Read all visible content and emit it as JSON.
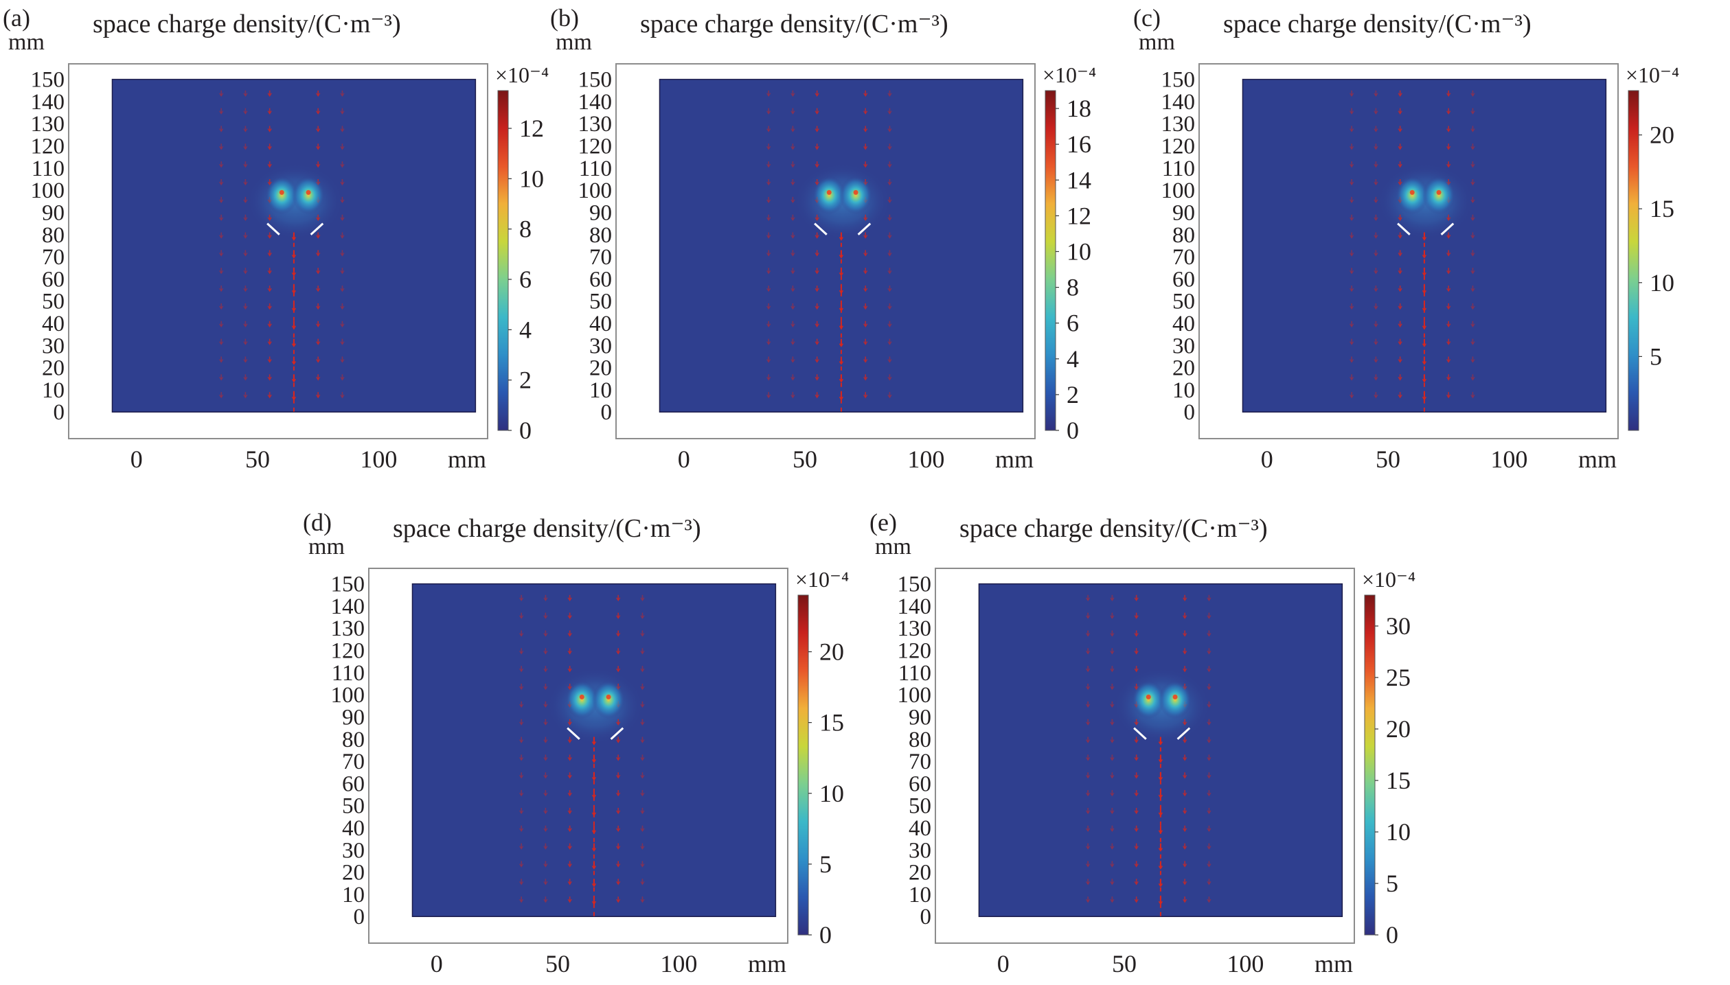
{
  "figure": {
    "panels": [
      {
        "letter": "(a)",
        "title": "space charge density/(C·m⁻³)",
        "y_unit": "mm",
        "x_unit": "mm",
        "multiplier": "×10⁻⁴"
      },
      {
        "letter": "(b)",
        "title": "space charge density/(C·m⁻³)",
        "y_unit": "mm",
        "x_unit": "mm",
        "multiplier": "×10⁻⁴"
      },
      {
        "letter": "(c)",
        "title": "space charge density/(C·m⁻³)",
        "y_unit": "mm",
        "x_unit": "mm",
        "multiplier": "×10⁻⁴"
      },
      {
        "letter": "(d)",
        "title": "space charge density/(C·m⁻³)",
        "y_unit": "mm",
        "x_unit": "mm",
        "multiplier": "×10⁻⁴"
      },
      {
        "letter": "(e)",
        "title": "space charge density/(C·m⁻³)",
        "y_unit": "mm",
        "x_unit": "mm",
        "multiplier": "×10⁻⁴"
      }
    ]
  },
  "colors": {
    "background_field": "#2f3f8f",
    "frame": "#8c8c8c",
    "arrow": "#d7261e",
    "electrode": "#ffffff",
    "colormap": [
      "#30307f",
      "#2a58b0",
      "#2f8fc8",
      "#3cb8c8",
      "#7ccf8f",
      "#c8d63c",
      "#f0b03a",
      "#e8582a",
      "#c8221e",
      "#7a1616"
    ]
  },
  "chart_data": [
    {
      "type": "heatmap",
      "title": "space charge density/(C·m⁻³)",
      "xlabel": "mm",
      "ylabel": "mm",
      "x_ticks": [
        0,
        50,
        100
      ],
      "y_ticks": [
        0,
        10,
        20,
        30,
        40,
        50,
        60,
        70,
        80,
        90,
        100,
        110,
        120,
        130,
        140,
        150
      ],
      "xlim": [
        -28,
        145
      ],
      "ylim": [
        -12,
        157
      ],
      "domain_x": [
        -10,
        140
      ],
      "domain_y": [
        0,
        150
      ],
      "colorbar": {
        "multiplier": "×10⁻⁴",
        "ticks": [
          0,
          2,
          4,
          6,
          8,
          10,
          12
        ],
        "range": [
          0,
          13.5
        ]
      },
      "hotspots": [
        {
          "x": 60,
          "y": 99
        },
        {
          "x": 71,
          "y": 99
        }
      ],
      "electrodes": [
        {
          "x1": 54,
          "y1": 85,
          "x2": 59,
          "y2": 80
        },
        {
          "x1": 72,
          "y1": 80,
          "x2": 77,
          "y2": 85
        }
      ]
    },
    {
      "type": "heatmap",
      "title": "space charge density/(C·m⁻³)",
      "xlabel": "mm",
      "ylabel": "mm",
      "x_ticks": [
        0,
        50,
        100
      ],
      "y_ticks": [
        0,
        10,
        20,
        30,
        40,
        50,
        60,
        70,
        80,
        90,
        100,
        110,
        120,
        130,
        140,
        150
      ],
      "xlim": [
        -28,
        145
      ],
      "ylim": [
        -12,
        157
      ],
      "domain_x": [
        -10,
        140
      ],
      "domain_y": [
        0,
        150
      ],
      "colorbar": {
        "multiplier": "×10⁻⁴",
        "ticks": [
          0,
          2,
          4,
          6,
          8,
          10,
          12,
          14,
          16,
          18
        ],
        "range": [
          0,
          19
        ]
      },
      "hotspots": [
        {
          "x": 60,
          "y": 99
        },
        {
          "x": 71,
          "y": 99
        }
      ],
      "electrodes": [
        {
          "x1": 54,
          "y1": 85,
          "x2": 59,
          "y2": 80
        },
        {
          "x1": 72,
          "y1": 80,
          "x2": 77,
          "y2": 85
        }
      ]
    },
    {
      "type": "heatmap",
      "title": "space charge density/(C·m⁻³)",
      "xlabel": "mm",
      "ylabel": "mm",
      "x_ticks": [
        0,
        50,
        100
      ],
      "y_ticks": [
        0,
        10,
        20,
        30,
        40,
        50,
        60,
        70,
        80,
        90,
        100,
        110,
        120,
        130,
        140,
        150
      ],
      "xlim": [
        -28,
        145
      ],
      "ylim": [
        -12,
        157
      ],
      "domain_x": [
        -10,
        140
      ],
      "domain_y": [
        0,
        150
      ],
      "colorbar": {
        "multiplier": "×10⁻⁴",
        "ticks": [
          5,
          10,
          15,
          20
        ],
        "range": [
          0,
          23
        ]
      },
      "hotspots": [
        {
          "x": 60,
          "y": 99
        },
        {
          "x": 71,
          "y": 99
        }
      ],
      "electrodes": [
        {
          "x1": 54,
          "y1": 85,
          "x2": 59,
          "y2": 80
        },
        {
          "x1": 72,
          "y1": 80,
          "x2": 77,
          "y2": 85
        }
      ]
    },
    {
      "type": "heatmap",
      "title": "space charge density/(C·m⁻³)",
      "xlabel": "mm",
      "ylabel": "mm",
      "x_ticks": [
        0,
        50,
        100
      ],
      "y_ticks": [
        0,
        10,
        20,
        30,
        40,
        50,
        60,
        70,
        80,
        90,
        100,
        110,
        120,
        130,
        140,
        150
      ],
      "xlim": [
        -28,
        145
      ],
      "ylim": [
        -12,
        157
      ],
      "domain_x": [
        -10,
        140
      ],
      "domain_y": [
        0,
        150
      ],
      "colorbar": {
        "multiplier": "×10⁻⁴",
        "ticks": [
          0,
          5,
          10,
          15,
          20
        ],
        "range": [
          0,
          24
        ]
      },
      "hotspots": [
        {
          "x": 60,
          "y": 99
        },
        {
          "x": 71,
          "y": 99
        }
      ],
      "electrodes": [
        {
          "x1": 54,
          "y1": 85,
          "x2": 59,
          "y2": 80
        },
        {
          "x1": 72,
          "y1": 80,
          "x2": 77,
          "y2": 85
        }
      ]
    },
    {
      "type": "heatmap",
      "title": "space charge density/(C·m⁻³)",
      "xlabel": "mm",
      "ylabel": "mm",
      "x_ticks": [
        0,
        50,
        100
      ],
      "y_ticks": [
        0,
        10,
        20,
        30,
        40,
        50,
        60,
        70,
        80,
        90,
        100,
        110,
        120,
        130,
        140,
        150
      ],
      "xlim": [
        -28,
        145
      ],
      "ylim": [
        -12,
        157
      ],
      "domain_x": [
        -10,
        140
      ],
      "domain_y": [
        0,
        150
      ],
      "colorbar": {
        "multiplier": "×10⁻⁴",
        "ticks": [
          0,
          5,
          10,
          15,
          20,
          25,
          30
        ],
        "range": [
          0,
          33
        ]
      },
      "hotspots": [
        {
          "x": 60,
          "y": 99
        },
        {
          "x": 71,
          "y": 99
        }
      ],
      "electrodes": [
        {
          "x1": 54,
          "y1": 85,
          "x2": 59,
          "y2": 80
        },
        {
          "x1": 72,
          "y1": 80,
          "x2": 77,
          "y2": 85
        }
      ]
    }
  ]
}
